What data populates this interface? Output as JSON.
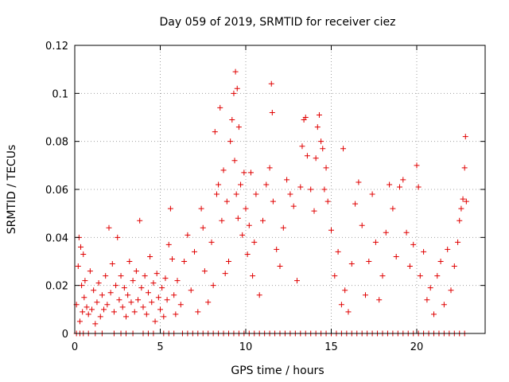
{
  "chart_data": {
    "type": "scatter",
    "title": "Day 059 of 2019, SRMTID for receiver ciez",
    "xlabel": "GPS time / hours",
    "ylabel": "SRMTID / TECUs",
    "xlim": [
      0,
      24
    ],
    "ylim": [
      0,
      0.12
    ],
    "x_ticks": [
      0,
      5,
      10,
      15,
      20
    ],
    "x_tick_labels": [
      "0",
      "5",
      "10",
      "15",
      "20"
    ],
    "y_ticks": [
      0,
      0.02,
      0.04,
      0.06,
      0.08,
      0.1,
      0.12
    ],
    "y_tick_labels": [
      "0",
      "0.02",
      "0.04",
      "0.06",
      "0.08",
      "0.1",
      "0.12"
    ],
    "grid": true,
    "marker": "+",
    "color": "#e00000",
    "series": [
      {
        "name": "SRMTID",
        "points": [
          [
            0.1,
            0.012
          ],
          [
            0.2,
            0.028
          ],
          [
            0.25,
            0.04
          ],
          [
            0.3,
            0.005
          ],
          [
            0.35,
            0.036
          ],
          [
            0.4,
            0.02
          ],
          [
            0.45,
            0.009
          ],
          [
            0.5,
            0.033
          ],
          [
            0.55,
            0.015
          ],
          [
            0.6,
            0.022
          ],
          [
            0.7,
            0.011
          ],
          [
            0.8,
            0.008
          ],
          [
            0.9,
            0.026
          ],
          [
            1.0,
            0.01
          ],
          [
            1.1,
            0.018
          ],
          [
            1.2,
            0.004
          ],
          [
            1.3,
            0.013
          ],
          [
            1.4,
            0.021
          ],
          [
            1.5,
            0.007
          ],
          [
            1.6,
            0.016
          ],
          [
            1.7,
            0.01
          ],
          [
            1.8,
            0.024
          ],
          [
            1.9,
            0.012
          ],
          [
            2.0,
            0.044
          ],
          [
            2.1,
            0.017
          ],
          [
            2.2,
            0.029
          ],
          [
            2.3,
            0.009
          ],
          [
            2.4,
            0.02
          ],
          [
            2.5,
            0.04
          ],
          [
            2.6,
            0.014
          ],
          [
            2.7,
            0.024
          ],
          [
            2.8,
            0.011
          ],
          [
            2.9,
            0.019
          ],
          [
            3.0,
            0.007
          ],
          [
            3.1,
            0.016
          ],
          [
            3.2,
            0.03
          ],
          [
            3.3,
            0.013
          ],
          [
            3.4,
            0.022
          ],
          [
            3.5,
            0.009
          ],
          [
            3.6,
            0.026
          ],
          [
            3.7,
            0.014
          ],
          [
            3.8,
            0.047
          ],
          [
            3.9,
            0.019
          ],
          [
            4.0,
            0.011
          ],
          [
            4.1,
            0.024
          ],
          [
            4.2,
            0.008
          ],
          [
            4.3,
            0.017
          ],
          [
            4.4,
            0.032
          ],
          [
            4.5,
            0.013
          ],
          [
            4.6,
            0.021
          ],
          [
            4.7,
            0.005
          ],
          [
            4.8,
            0.025
          ],
          [
            4.9,
            0.015
          ],
          [
            5.0,
            0.01
          ],
          [
            5.1,
            0.019
          ],
          [
            5.2,
            0.007
          ],
          [
            5.3,
            0.023
          ],
          [
            5.4,
            0.014
          ],
          [
            5.5,
            0.037
          ],
          [
            5.6,
            0.052
          ],
          [
            5.7,
            0.031
          ],
          [
            5.8,
            0.016
          ],
          [
            5.9,
            0.008
          ],
          [
            6.0,
            0.022
          ],
          [
            6.2,
            0.012
          ],
          [
            6.4,
            0.03
          ],
          [
            6.6,
            0.041
          ],
          [
            6.8,
            0.018
          ],
          [
            7.0,
            0.034
          ],
          [
            7.2,
            0.009
          ],
          [
            7.4,
            0.052
          ],
          [
            7.5,
            0.044
          ],
          [
            7.6,
            0.026
          ],
          [
            7.8,
            0.013
          ],
          [
            8.0,
            0.038
          ],
          [
            8.1,
            0.02
          ],
          [
            8.2,
            0.084
          ],
          [
            8.3,
            0.058
          ],
          [
            8.4,
            0.062
          ],
          [
            8.5,
            0.094
          ],
          [
            8.6,
            0.047
          ],
          [
            8.7,
            0.068
          ],
          [
            8.8,
            0.025
          ],
          [
            8.9,
            0.055
          ],
          [
            9.0,
            0.03
          ],
          [
            9.1,
            0.08
          ],
          [
            9.2,
            0.089
          ],
          [
            9.3,
            0.1
          ],
          [
            9.35,
            0.072
          ],
          [
            9.4,
            0.109
          ],
          [
            9.45,
            0.058
          ],
          [
            9.5,
            0.102
          ],
          [
            9.55,
            0.048
          ],
          [
            9.6,
            0.086
          ],
          [
            9.7,
            0.062
          ],
          [
            9.8,
            0.041
          ],
          [
            9.9,
            0.067
          ],
          [
            10.0,
            0.052
          ],
          [
            10.1,
            0.033
          ],
          [
            10.2,
            0.045
          ],
          [
            10.3,
            0.067
          ],
          [
            10.4,
            0.024
          ],
          [
            10.5,
            0.038
          ],
          [
            10.6,
            0.058
          ],
          [
            10.8,
            0.016
          ],
          [
            11.0,
            0.047
          ],
          [
            11.2,
            0.062
          ],
          [
            11.4,
            0.069
          ],
          [
            11.5,
            0.104
          ],
          [
            11.55,
            0.092
          ],
          [
            11.6,
            0.055
          ],
          [
            11.8,
            0.035
          ],
          [
            12.0,
            0.028
          ],
          [
            12.2,
            0.044
          ],
          [
            12.4,
            0.064
          ],
          [
            12.6,
            0.058
          ],
          [
            12.8,
            0.053
          ],
          [
            13.0,
            0.022
          ],
          [
            13.2,
            0.061
          ],
          [
            13.3,
            0.078
          ],
          [
            13.4,
            0.089
          ],
          [
            13.5,
            0.09
          ],
          [
            13.6,
            0.074
          ],
          [
            13.8,
            0.06
          ],
          [
            14.0,
            0.051
          ],
          [
            14.1,
            0.073
          ],
          [
            14.2,
            0.086
          ],
          [
            14.3,
            0.091
          ],
          [
            14.4,
            0.08
          ],
          [
            14.5,
            0.077
          ],
          [
            14.6,
            0.06
          ],
          [
            14.7,
            0.069
          ],
          [
            14.8,
            0.055
          ],
          [
            15.0,
            0.043
          ],
          [
            15.2,
            0.024
          ],
          [
            15.4,
            0.034
          ],
          [
            15.6,
            0.012
          ],
          [
            15.7,
            0.077
          ],
          [
            15.8,
            0.018
          ],
          [
            16.0,
            0.009
          ],
          [
            16.2,
            0.029
          ],
          [
            16.4,
            0.054
          ],
          [
            16.6,
            0.063
          ],
          [
            16.8,
            0.045
          ],
          [
            17.0,
            0.016
          ],
          [
            17.2,
            0.03
          ],
          [
            17.4,
            0.058
          ],
          [
            17.6,
            0.038
          ],
          [
            17.8,
            0.014
          ],
          [
            18.0,
            0.024
          ],
          [
            18.2,
            0.042
          ],
          [
            18.4,
            0.062
          ],
          [
            18.6,
            0.052
          ],
          [
            18.8,
            0.032
          ],
          [
            19.0,
            0.061
          ],
          [
            19.2,
            0.064
          ],
          [
            19.4,
            0.042
          ],
          [
            19.6,
            0.028
          ],
          [
            19.8,
            0.037
          ],
          [
            20.0,
            0.07
          ],
          [
            20.1,
            0.061
          ],
          [
            20.2,
            0.024
          ],
          [
            20.4,
            0.034
          ],
          [
            20.6,
            0.014
          ],
          [
            20.8,
            0.019
          ],
          [
            21.0,
            0.008
          ],
          [
            21.2,
            0.024
          ],
          [
            21.4,
            0.03
          ],
          [
            21.6,
            0.012
          ],
          [
            21.8,
            0.035
          ],
          [
            22.0,
            0.018
          ],
          [
            22.2,
            0.028
          ],
          [
            22.4,
            0.038
          ],
          [
            22.5,
            0.047
          ],
          [
            22.6,
            0.052
          ],
          [
            22.7,
            0.056
          ],
          [
            22.8,
            0.069
          ],
          [
            22.85,
            0.082
          ],
          [
            22.9,
            0.055
          ]
        ],
        "zero_points": [
          0.1,
          0.3,
          0.5,
          0.8,
          1.2,
          1.6,
          2.3,
          2.7,
          3.0,
          3.4,
          4.0,
          4.3,
          4.6,
          5.2,
          5.5,
          5.8,
          6.3,
          6.6,
          6.9,
          7.2,
          7.5,
          7.8,
          8.1,
          8.4,
          8.7,
          9.0,
          9.3,
          9.6,
          9.9,
          10.2,
          10.5,
          10.8,
          11.1,
          11.4,
          11.7,
          12.0,
          12.3,
          12.6,
          12.9,
          13.2,
          13.5,
          13.8,
          14.1,
          14.4,
          14.7,
          15.0,
          15.3,
          15.6,
          15.9,
          16.2,
          16.5,
          16.8,
          17.1,
          17.4,
          17.7,
          18.0,
          18.3,
          18.6,
          18.9,
          19.2,
          19.5,
          19.8,
          20.1,
          20.4,
          20.7,
          21.0,
          21.3,
          21.6,
          21.9,
          22.2,
          22.5,
          22.8
        ]
      }
    ]
  }
}
